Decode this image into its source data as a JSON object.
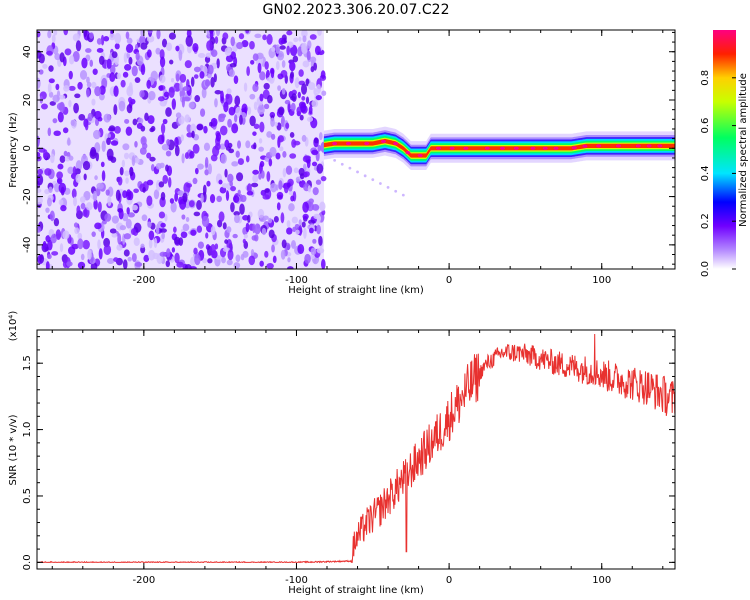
{
  "figure": {
    "title": "GN02.2023.306.20.07.C22"
  },
  "chart_data": [
    {
      "type": "heatmap",
      "name": "spectrogram",
      "xlabel": "Height of straight line (km)",
      "ylabel": "Frequency (Hz)",
      "xlim": [
        -270,
        148
      ],
      "ylim": [
        -50,
        49
      ],
      "x_ticks": [
        -200,
        -100,
        0,
        100
      ],
      "y_ticks": [
        -40,
        -20,
        0,
        20,
        40
      ],
      "x_tick_labels": [
        "-200",
        "-100",
        "0",
        "100"
      ],
      "y_tick_labels": [
        "-40",
        "-20",
        "0",
        "20",
        "40"
      ],
      "noise_region_x": [
        -270,
        -82
      ],
      "signal_band": {
        "x_start": -82,
        "x_end": 148,
        "center_hz": [
          [
            -85,
            1
          ],
          [
            -75,
            2
          ],
          [
            -60,
            2
          ],
          [
            -50,
            2
          ],
          [
            -42,
            3
          ],
          [
            -35,
            2
          ],
          [
            -30,
            0
          ],
          [
            -25,
            -3
          ],
          [
            -15,
            -3
          ],
          [
            -12,
            0
          ],
          [
            0,
            0
          ],
          [
            20,
            0
          ],
          [
            40,
            0
          ],
          [
            60,
            0
          ],
          [
            80,
            0
          ],
          [
            90,
            1
          ],
          [
            110,
            1
          ],
          [
            130,
            1
          ],
          [
            148,
            1
          ]
        ],
        "half_width_hz": 2.5
      },
      "colorbar": {
        "label": "Normalized spectral amplitude",
        "range": [
          0,
          1
        ],
        "ticks": [
          0.0,
          0.2,
          0.4,
          0.6,
          0.8
        ],
        "tick_labels": [
          "0.0",
          "0.2",
          "0.4",
          "0.6",
          "0.8"
        ],
        "colors": [
          "#ffffff",
          "#b388ff",
          "#7000ff",
          "#0000ff",
          "#00e5ff",
          "#00ff60",
          "#c8ff00",
          "#ffd000",
          "#ff2000",
          "#ff0080"
        ]
      }
    },
    {
      "type": "line",
      "name": "snr",
      "xlabel": "Height of straight line (km)",
      "ylabel": "SNR (10 * v/v)",
      "y_multiplier_label": "(x10⁴)",
      "xlim": [
        -270,
        148
      ],
      "ylim": [
        -0.05,
        1.75
      ],
      "x_ticks": [
        -200,
        -100,
        0,
        100
      ],
      "y_ticks": [
        0.0,
        0.5,
        1.0,
        1.5
      ],
      "x_tick_labels": [
        "-200",
        "-100",
        "0",
        "100"
      ],
      "y_tick_labels": [
        "0.0",
        "0.5",
        "1.0",
        "1.5"
      ],
      "color": "#e8312f",
      "series": [
        {
          "x": [
            -270,
            -200,
            -100,
            -64,
            -62,
            -55,
            -45,
            -35,
            -25,
            -15,
            -5,
            5,
            15,
            25,
            35,
            45,
            55,
            70,
            90,
            110,
            130,
            148
          ],
          "values": [
            0.0,
            0.0,
            0.0,
            0.01,
            0.15,
            0.28,
            0.4,
            0.55,
            0.7,
            0.85,
            1.0,
            1.18,
            1.35,
            1.5,
            1.58,
            1.58,
            1.55,
            1.5,
            1.45,
            1.38,
            1.32,
            1.22
          ]
        }
      ]
    }
  ]
}
